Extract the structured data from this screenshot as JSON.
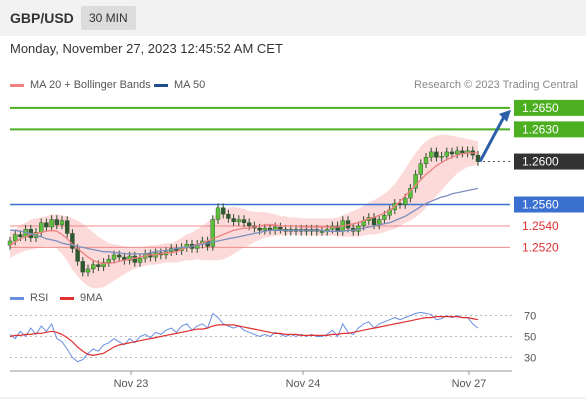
{
  "header": {
    "symbol": "GBP/USD",
    "timeframe": "30 MIN",
    "datetime": "Monday, November 27, 2023 12:45:52 AM CET",
    "copyright": "Research © 2023 Trading Central"
  },
  "legend": {
    "price": [
      {
        "label": "MA 20 + Bollinger Bands",
        "color": "#f08080"
      },
      {
        "label": "MA 50",
        "color": "#1f4e8c"
      }
    ],
    "rsi": [
      {
        "label": "RSI",
        "color": "#6b8fe0"
      },
      {
        "label": "9MA",
        "color": "#e03030"
      }
    ]
  },
  "chart_data": {
    "type": "line",
    "description_series": "30-min candlestick price chart with MA20, Bollinger Bands, MA50 and RSI sub-panel",
    "price_ylim": [
      1.2485,
      1.2662
    ],
    "levels": [
      {
        "value": 1.265,
        "label": "1.2650",
        "color": "#4caf20",
        "kind": "resistance"
      },
      {
        "value": 1.263,
        "label": "1.2630",
        "color": "#4caf20",
        "kind": "resistance"
      },
      {
        "value": 1.26,
        "label": "1.2600",
        "color": "#333333",
        "kind": "last"
      },
      {
        "value": 1.256,
        "label": "1.2560",
        "color": "#3a70d0",
        "kind": "pivot"
      },
      {
        "value": 1.254,
        "label": "1.2540",
        "color": "#e03030",
        "kind": "support"
      },
      {
        "value": 1.252,
        "label": "1.2520",
        "color": "#e03030",
        "kind": "support"
      }
    ],
    "x_ticks": [
      "Nov 23",
      "Nov 24",
      "Nov 27"
    ],
    "rsi_ticks": [
      70,
      50,
      30
    ],
    "rsi_ylim": [
      20,
      80
    ],
    "close": [
      1.2526,
      1.2532,
      1.253,
      1.2537,
      1.2529,
      1.2534,
      1.2543,
      1.2539,
      1.2546,
      1.2541,
      1.2545,
      1.2533,
      1.2519,
      1.2507,
      1.2497,
      1.25,
      1.2504,
      1.2502,
      1.2506,
      1.2509,
      1.2513,
      1.2511,
      1.2508,
      1.2512,
      1.2506,
      1.251,
      1.2514,
      1.2511,
      1.2515,
      1.2513,
      1.2516,
      1.2519,
      1.2517,
      1.252,
      1.2523,
      1.2519,
      1.2523,
      1.2526,
      1.2521,
      1.2546,
      1.2557,
      1.2551,
      1.2547,
      1.2544,
      1.2546,
      1.2543,
      1.254,
      1.2538,
      1.2536,
      1.2538,
      1.2536,
      1.2539,
      1.2537,
      1.2535,
      1.2537,
      1.2535,
      1.2537,
      1.2535,
      1.2537,
      1.2535,
      1.2535,
      1.2537,
      1.254,
      1.2535,
      1.2545,
      1.2538,
      1.2535,
      1.254,
      1.2545,
      1.2548,
      1.2541,
      1.2546,
      1.255,
      1.2555,
      1.2561,
      1.256,
      1.2566,
      1.2575,
      1.2588,
      1.2598,
      1.2604,
      1.2609,
      1.2604,
      1.2605,
      1.2609,
      1.2607,
      1.261,
      1.2608,
      1.261,
      1.2606,
      1.26
    ],
    "ma20": [
      1.2522,
      1.2525,
      1.2528,
      1.253,
      1.2532,
      1.2533,
      1.2534,
      1.2535,
      1.2536,
      1.2535,
      1.2532,
      1.2528,
      1.2523,
      1.2519,
      1.2515,
      1.2511,
      1.2508,
      1.2506,
      1.2505,
      1.2505,
      1.2506,
      1.2507,
      1.2508,
      1.2509,
      1.251,
      1.2511,
      1.2512,
      1.2513,
      1.2513,
      1.2514,
      1.2515,
      1.2515,
      1.2516,
      1.2518,
      1.252,
      1.2521,
      1.2523,
      1.2524,
      1.2526,
      1.2528,
      1.253,
      1.2532,
      1.2534,
      1.2536,
      1.2537,
      1.2538,
      1.2538,
      1.2539,
      1.254,
      1.2541,
      1.2541,
      1.2541,
      1.254,
      1.254,
      1.254,
      1.254,
      1.2539,
      1.2539,
      1.2539,
      1.2539,
      1.2539,
      1.2539,
      1.2539,
      1.2539,
      1.254,
      1.2541,
      1.2542,
      1.2543,
      1.2545,
      1.2547,
      1.2548,
      1.255,
      1.2552,
      1.2555,
      1.2558,
      1.2563,
      1.2568,
      1.2573,
      1.2578,
      1.2583,
      1.2588,
      1.2592,
      1.2596,
      1.2599,
      1.2602,
      1.2604,
      1.2606,
      1.2607,
      1.2608,
      1.2608,
      1.2608
    ],
    "ma50": [
      1.2536,
      1.2536,
      1.2535,
      1.2534,
      1.2533,
      1.2531,
      1.253,
      1.2528,
      1.2527,
      1.2526,
      1.2524,
      1.2523,
      1.2522,
      1.2521,
      1.252,
      1.2519,
      1.2518,
      1.2517,
      1.2516,
      1.2516,
      1.2515,
      1.2515,
      1.2514,
      1.2514,
      1.2514,
      1.2514,
      1.2514,
      1.2515,
      1.2516,
      1.2517,
      1.2517,
      1.2518,
      1.2519,
      1.252,
      1.252,
      1.2521,
      1.2522,
      1.2523,
      1.2524,
      1.2525,
      1.2526,
      1.2527,
      1.2528,
      1.2529,
      1.253,
      1.2531,
      1.2532,
      1.2533,
      1.2534,
      1.2535,
      1.2536,
      1.2536,
      1.2536,
      1.2536,
      1.2536,
      1.2536,
      1.2536,
      1.2536,
      1.2536,
      1.2536,
      1.2536,
      1.2535,
      1.2535,
      1.2535,
      1.2535,
      1.2536,
      1.2536,
      1.2537,
      1.2538,
      1.2539,
      1.254,
      1.2541,
      1.2542,
      1.2543,
      1.2545,
      1.2547,
      1.2549,
      1.2552,
      1.2555,
      1.2558,
      1.2561,
      1.2563,
      1.2565,
      1.2567,
      1.2568,
      1.257,
      1.2571,
      1.2572,
      1.2573,
      1.2574,
      1.2575
    ],
    "bb_width": [
      0.0012,
      0.0012,
      0.0013,
      0.0013,
      0.0014,
      0.0014,
      0.0014,
      0.0014,
      0.0015,
      0.0016,
      0.0018,
      0.0021,
      0.0024,
      0.0026,
      0.0027,
      0.0027,
      0.0026,
      0.0024,
      0.0022,
      0.0019,
      0.0017,
      0.0015,
      0.0013,
      0.0011,
      0.001,
      0.0009,
      0.0009,
      0.0009,
      0.0009,
      0.0009,
      0.0009,
      0.0009,
      0.001,
      0.0011,
      0.0012,
      0.0013,
      0.0014,
      0.0016,
      0.0018,
      0.002,
      0.0022,
      0.0023,
      0.0023,
      0.0022,
      0.002,
      0.0018,
      0.0016,
      0.0014,
      0.0013,
      0.0012,
      0.0011,
      0.001,
      0.0009,
      0.0009,
      0.0008,
      0.0008,
      0.0008,
      0.0008,
      0.0008,
      0.0008,
      0.0008,
      0.0008,
      0.0008,
      0.0009,
      0.001,
      0.0011,
      0.0012,
      0.0013,
      0.0014,
      0.0015,
      0.0016,
      0.0017,
      0.0018,
      0.0019,
      0.0021,
      0.0023,
      0.0025,
      0.0028,
      0.003,
      0.0031,
      0.0031,
      0.003,
      0.0028,
      0.0026,
      0.0023,
      0.002,
      0.0017,
      0.0015,
      0.0013,
      0.0012,
      0.0011
    ],
    "rsi": [
      52,
      48,
      55,
      50,
      58,
      52,
      60,
      55,
      62,
      48,
      45,
      38,
      30,
      26,
      28,
      34,
      38,
      36,
      42,
      44,
      48,
      45,
      42,
      48,
      44,
      50,
      52,
      49,
      54,
      52,
      56,
      58,
      54,
      60,
      62,
      56,
      60,
      62,
      58,
      72,
      68,
      62,
      60,
      58,
      60,
      56,
      54,
      52,
      50,
      52,
      50,
      54,
      52,
      50,
      52,
      50,
      52,
      50,
      52,
      50,
      50,
      52,
      56,
      50,
      62,
      54,
      52,
      58,
      62,
      64,
      58,
      62,
      64,
      66,
      68,
      66,
      68,
      70,
      72,
      73,
      72,
      71,
      66,
      67,
      70,
      68,
      70,
      68,
      68,
      62,
      58
    ],
    "rsi_ma": [
      50,
      51,
      51,
      52,
      52,
      53,
      53,
      54,
      55,
      54,
      52,
      49,
      45,
      40,
      36,
      33,
      32,
      33,
      34,
      37,
      40,
      42,
      43,
      44,
      45,
      46,
      47,
      48,
      49,
      50,
      51,
      52,
      53,
      54,
      55,
      56,
      57,
      57,
      58,
      60,
      61,
      61,
      61,
      61,
      60,
      59,
      58,
      57,
      56,
      55,
      54,
      53,
      53,
      52,
      52,
      52,
      51,
      51,
      51,
      51,
      51,
      51,
      52,
      52,
      53,
      53,
      54,
      55,
      56,
      57,
      58,
      59,
      60,
      61,
      62,
      63,
      64,
      65,
      66,
      67,
      68,
      68,
      69,
      69,
      69,
      69,
      69,
      68,
      68,
      67,
      66
    ],
    "arrow": {
      "from": 1.26,
      "to": 1.265
    }
  }
}
